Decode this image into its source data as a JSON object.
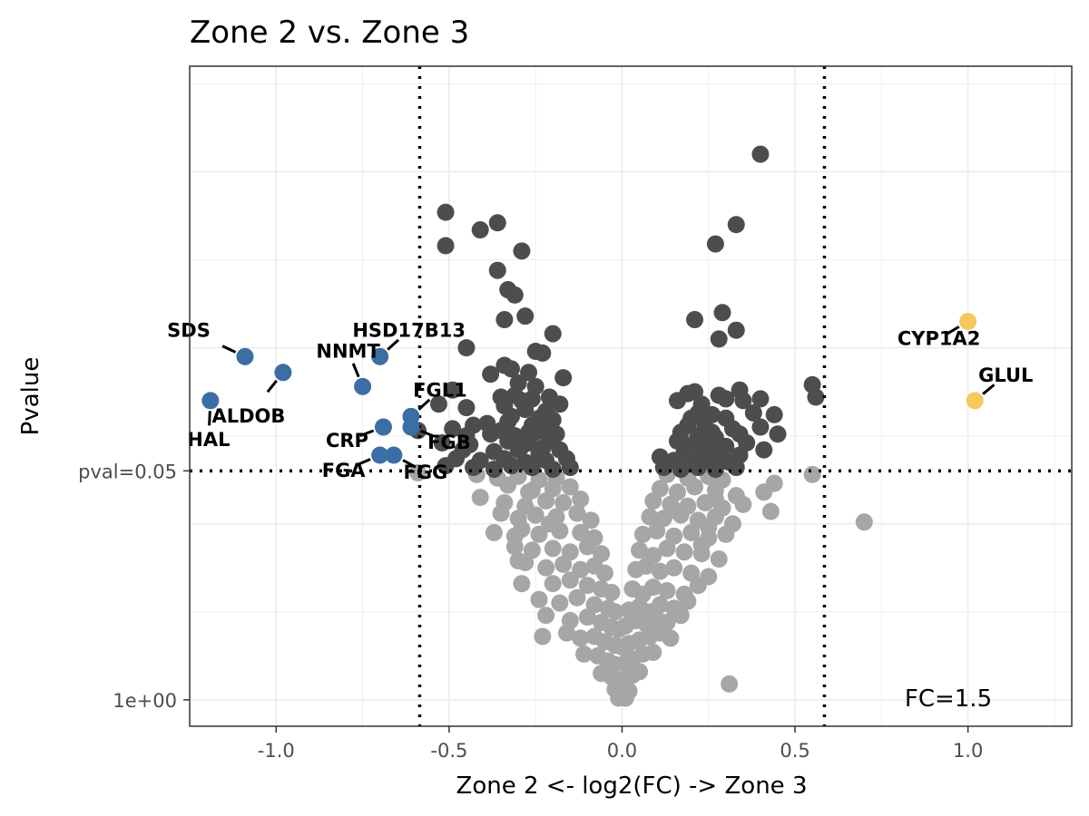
{
  "chart_data": {
    "type": "scatter",
    "title": "Zone 2 vs. Zone 3",
    "xlabel": "Zone 2 <- log2(FC) -> Zone 3",
    "ylabel": "Pvalue",
    "x_ticks": [
      -1.0,
      -0.5,
      0.0,
      0.5,
      1.0
    ],
    "x_tick_labels": [
      "-1.0",
      "-0.5",
      "0.0",
      "0.5",
      "1.0"
    ],
    "xlim": [
      -1.25,
      1.3
    ],
    "y_scale": "-log10",
    "ylim_neglog10": [
      -0.15,
      3.6
    ],
    "y_ticks": [
      {
        "label": "pval=0.05",
        "neglog10": 1.301
      },
      {
        "label": "1e+00",
        "neglog10": 0
      }
    ],
    "threshold_lines": {
      "vertical_log2fc": [
        -0.585,
        0.585
      ],
      "horizontal_neglog10p": 1.301
    },
    "fc_note": "FC=1.5",
    "grid": true,
    "colors": {
      "down": "#3a6ea5",
      "up": "#f5c95a",
      "significant": "#4d4d4d",
      "not_significant": "#a6a6a6",
      "panel_border": "#333333",
      "grid": "#ebebeb"
    },
    "labeled_genes": [
      {
        "gene": "SDS",
        "x": -1.09,
        "y": 1.95,
        "group": "down"
      },
      {
        "gene": "ALDOB",
        "x": -0.98,
        "y": 1.86,
        "group": "down"
      },
      {
        "gene": "HAL",
        "x": -1.19,
        "y": 1.7,
        "group": "down"
      },
      {
        "gene": "HSD17B13",
        "x": -0.7,
        "y": 1.95,
        "group": "down"
      },
      {
        "gene": "NNMT",
        "x": -0.75,
        "y": 1.78,
        "group": "down"
      },
      {
        "gene": "FGL1",
        "x": -0.61,
        "y": 1.61,
        "group": "down"
      },
      {
        "gene": "CRP",
        "x": -0.69,
        "y": 1.55,
        "group": "down"
      },
      {
        "gene": "FGB",
        "x": -0.61,
        "y": 1.55,
        "group": "down"
      },
      {
        "gene": "FGA",
        "x": -0.7,
        "y": 1.39,
        "group": "down"
      },
      {
        "gene": "FGG",
        "x": -0.66,
        "y": 1.39,
        "group": "down"
      },
      {
        "gene": "CYP1A2",
        "x": 1.0,
        "y": 2.15,
        "group": "up"
      },
      {
        "gene": "GLUL",
        "x": 1.02,
        "y": 1.7,
        "group": "up"
      }
    ],
    "significant_points": [
      [
        0.4,
        3.1
      ],
      [
        -0.51,
        2.77
      ],
      [
        -0.36,
        2.71
      ],
      [
        0.33,
        2.7
      ],
      [
        -0.41,
        2.67
      ],
      [
        -0.51,
        2.58
      ],
      [
        0.27,
        2.59
      ],
      [
        -0.29,
        2.55
      ],
      [
        -0.36,
        2.44
      ],
      [
        -0.31,
        2.3
      ],
      [
        -0.33,
        2.33
      ],
      [
        0.29,
        2.2
      ],
      [
        -0.34,
        2.16
      ],
      [
        -0.28,
        2.18
      ],
      [
        0.21,
        2.16
      ],
      [
        -0.2,
        2.08
      ],
      [
        0.33,
        2.1
      ],
      [
        0.28,
        2.05
      ],
      [
        -0.45,
        2.0
      ],
      [
        -0.25,
        1.98
      ],
      [
        -0.23,
        1.97
      ],
      [
        -0.34,
        1.9
      ],
      [
        -0.32,
        1.88
      ],
      [
        -0.27,
        1.86
      ],
      [
        -0.38,
        1.85
      ],
      [
        -0.3,
        1.8
      ],
      [
        -0.17,
        1.83
      ],
      [
        -0.25,
        1.78
      ],
      [
        -0.49,
        1.76
      ],
      [
        0.34,
        1.76
      ],
      [
        0.55,
        1.79
      ],
      [
        0.56,
        1.72
      ],
      [
        -0.31,
        1.73
      ],
      [
        -0.26,
        1.71
      ],
      [
        -0.21,
        1.72
      ],
      [
        0.19,
        1.74
      ],
      [
        0.21,
        1.75
      ],
      [
        0.28,
        1.73
      ],
      [
        0.16,
        1.7
      ],
      [
        0.3,
        1.71
      ],
      [
        0.35,
        1.7
      ],
      [
        0.4,
        1.71
      ],
      [
        -0.53,
        1.68
      ],
      [
        -0.45,
        1.66
      ],
      [
        -0.34,
        1.67
      ],
      [
        -0.28,
        1.65
      ],
      [
        -0.22,
        1.64
      ],
      [
        -0.18,
        1.68
      ],
      [
        0.22,
        1.63
      ],
      [
        0.26,
        1.62
      ],
      [
        0.3,
        1.6
      ],
      [
        0.38,
        1.63
      ],
      [
        0.44,
        1.62
      ],
      [
        -0.49,
        1.54
      ],
      [
        -0.43,
        1.56
      ],
      [
        -0.39,
        1.57
      ],
      [
        -0.33,
        1.58
      ],
      [
        -0.26,
        1.56
      ],
      [
        -0.22,
        1.55
      ],
      [
        0.19,
        1.56
      ],
      [
        0.24,
        1.55
      ],
      [
        0.32,
        1.54
      ],
      [
        0.4,
        1.55
      ],
      [
        -0.59,
        1.53
      ],
      [
        -0.45,
        1.5
      ],
      [
        -0.38,
        1.51
      ],
      [
        -0.31,
        1.5
      ],
      [
        -0.25,
        1.52
      ],
      [
        -0.19,
        1.51
      ],
      [
        0.17,
        1.52
      ],
      [
        0.22,
        1.5
      ],
      [
        0.27,
        1.49
      ],
      [
        0.34,
        1.51
      ],
      [
        0.45,
        1.51
      ],
      [
        -0.52,
        1.46
      ],
      [
        -0.44,
        1.45
      ],
      [
        -0.33,
        1.47
      ],
      [
        -0.27,
        1.46
      ],
      [
        -0.21,
        1.47
      ],
      [
        0.16,
        1.47
      ],
      [
        0.21,
        1.46
      ],
      [
        0.25,
        1.45
      ],
      [
        0.3,
        1.44
      ],
      [
        0.36,
        1.46
      ],
      [
        -0.46,
        1.42
      ],
      [
        -0.37,
        1.41
      ],
      [
        -0.3,
        1.42
      ],
      [
        -0.24,
        1.4
      ],
      [
        -0.18,
        1.42
      ],
      [
        0.18,
        1.41
      ],
      [
        0.23,
        1.4
      ],
      [
        0.28,
        1.41
      ],
      [
        0.34,
        1.39
      ],
      [
        0.41,
        1.42
      ],
      [
        -0.48,
        1.37
      ],
      [
        -0.41,
        1.36
      ],
      [
        -0.34,
        1.37
      ],
      [
        -0.28,
        1.35
      ],
      [
        -0.22,
        1.36
      ],
      [
        -0.16,
        1.37
      ],
      [
        0.11,
        1.38
      ],
      [
        0.15,
        1.36
      ],
      [
        0.2,
        1.35
      ],
      [
        0.25,
        1.36
      ],
      [
        0.31,
        1.35
      ],
      [
        -0.51,
        1.33
      ],
      [
        -0.43,
        1.32
      ],
      [
        -0.37,
        1.31
      ],
      [
        -0.32,
        1.33
      ],
      [
        -0.26,
        1.32
      ],
      [
        -0.2,
        1.31
      ],
      [
        -0.15,
        1.32
      ],
      [
        0.12,
        1.32
      ],
      [
        0.17,
        1.31
      ],
      [
        0.22,
        1.32
      ],
      [
        0.27,
        1.31
      ],
      [
        0.33,
        1.32
      ],
      [
        -0.29,
        1.44
      ],
      [
        -0.23,
        1.43
      ],
      [
        -0.32,
        1.61
      ],
      [
        -0.24,
        1.6
      ],
      [
        -0.2,
        1.59
      ],
      [
        0.19,
        1.44
      ],
      [
        0.24,
        1.42
      ],
      [
        0.2,
        1.6
      ],
      [
        0.26,
        1.52
      ],
      [
        -0.35,
        1.72
      ],
      [
        -0.29,
        1.7
      ],
      [
        0.23,
        1.68
      ],
      [
        -0.27,
        1.52
      ],
      [
        -0.35,
        1.53
      ],
      [
        0.28,
        1.37
      ]
    ],
    "nonsignificant_points": [
      [
        -0.59,
        1.29
      ],
      [
        -0.42,
        1.28
      ],
      [
        -0.36,
        1.26
      ],
      [
        -0.3,
        1.27
      ],
      [
        -0.24,
        1.25
      ],
      [
        -0.19,
        1.26
      ],
      [
        0.13,
        1.28
      ],
      [
        0.19,
        1.26
      ],
      [
        0.25,
        1.27
      ],
      [
        0.29,
        1.25
      ],
      [
        0.55,
        1.28
      ],
      [
        0.44,
        1.23
      ],
      [
        0.41,
        1.18
      ],
      [
        -0.41,
        1.15
      ],
      [
        -0.33,
        1.22
      ],
      [
        -0.26,
        1.19
      ],
      [
        -0.2,
        1.2
      ],
      [
        -0.15,
        1.21
      ],
      [
        0.11,
        1.2
      ],
      [
        0.16,
        1.18
      ],
      [
        0.21,
        1.21
      ],
      [
        0.27,
        1.19
      ],
      [
        0.33,
        1.16
      ],
      [
        0.35,
        1.11
      ],
      [
        0.43,
        1.07
      ],
      [
        0.7,
        1.01
      ],
      [
        -0.34,
        1.12
      ],
      [
        -0.28,
        1.1
      ],
      [
        -0.22,
        1.13
      ],
      [
        -0.17,
        1.12
      ],
      [
        -0.12,
        1.14
      ],
      [
        0.09,
        1.13
      ],
      [
        0.14,
        1.11
      ],
      [
        0.19,
        1.1
      ],
      [
        0.24,
        1.12
      ],
      [
        0.29,
        1.09
      ],
      [
        -0.35,
        1.06
      ],
      [
        -0.3,
        1.03
      ],
      [
        -0.25,
        1.05
      ],
      [
        -0.19,
        1.04
      ],
      [
        -0.13,
        1.06
      ],
      [
        -0.09,
        1.02
      ],
      [
        0.08,
        1.04
      ],
      [
        0.12,
        1.03
      ],
      [
        0.17,
        1.05
      ],
      [
        0.22,
        1.02
      ],
      [
        0.27,
        1.04
      ],
      [
        0.32,
        1.0
      ],
      [
        -0.37,
        0.95
      ],
      [
        -0.29,
        0.97
      ],
      [
        -0.24,
        0.94
      ],
      [
        -0.18,
        0.96
      ],
      [
        -0.12,
        0.95
      ],
      [
        -0.08,
        0.92
      ],
      [
        0.06,
        0.94
      ],
      [
        0.1,
        0.96
      ],
      [
        0.15,
        0.93
      ],
      [
        0.2,
        0.95
      ],
      [
        0.25,
        0.92
      ],
      [
        0.3,
        0.94
      ],
      [
        -0.31,
        0.87
      ],
      [
        -0.26,
        0.85
      ],
      [
        -0.2,
        0.86
      ],
      [
        -0.15,
        0.84
      ],
      [
        -0.1,
        0.87
      ],
      [
        -0.06,
        0.83
      ],
      [
        0.05,
        0.85
      ],
      [
        0.09,
        0.82
      ],
      [
        0.13,
        0.86
      ],
      [
        0.18,
        0.84
      ],
      [
        0.23,
        0.83
      ],
      [
        0.28,
        0.8
      ],
      [
        -0.28,
        0.78
      ],
      [
        -0.22,
        0.75
      ],
      [
        -0.17,
        0.77
      ],
      [
        -0.12,
        0.74
      ],
      [
        -0.08,
        0.76
      ],
      [
        -0.05,
        0.72
      ],
      [
        0.04,
        0.74
      ],
      [
        0.07,
        0.76
      ],
      [
        0.11,
        0.73
      ],
      [
        0.15,
        0.75
      ],
      [
        0.2,
        0.72
      ],
      [
        0.25,
        0.7
      ],
      [
        -0.29,
        0.66
      ],
      [
        -0.2,
        0.66
      ],
      [
        -0.15,
        0.68
      ],
      [
        -0.1,
        0.65
      ],
      [
        -0.06,
        0.63
      ],
      [
        -0.03,
        0.61
      ],
      [
        0.03,
        0.63
      ],
      [
        0.06,
        0.6
      ],
      [
        0.09,
        0.64
      ],
      [
        0.13,
        0.62
      ],
      [
        0.18,
        0.6
      ],
      [
        0.22,
        0.65
      ],
      [
        -0.24,
        0.57
      ],
      [
        -0.18,
        0.55
      ],
      [
        -0.13,
        0.58
      ],
      [
        -0.08,
        0.54
      ],
      [
        -0.04,
        0.52
      ],
      [
        -0.02,
        0.5
      ],
      [
        0.02,
        0.51
      ],
      [
        0.05,
        0.53
      ],
      [
        0.08,
        0.5
      ],
      [
        0.11,
        0.54
      ],
      [
        0.15,
        0.52
      ],
      [
        0.19,
        0.56
      ],
      [
        -0.22,
        0.48
      ],
      [
        -0.15,
        0.45
      ],
      [
        -0.1,
        0.47
      ],
      [
        -0.06,
        0.44
      ],
      [
        -0.03,
        0.41
      ],
      [
        -0.01,
        0.4
      ],
      [
        0.01,
        0.42
      ],
      [
        0.04,
        0.45
      ],
      [
        0.07,
        0.43
      ],
      [
        0.1,
        0.46
      ],
      [
        0.13,
        0.44
      ],
      [
        0.17,
        0.48
      ],
      [
        -0.16,
        0.38
      ],
      [
        -0.12,
        0.35
      ],
      [
        -0.08,
        0.36
      ],
      [
        -0.05,
        0.33
      ],
      [
        -0.02,
        0.31
      ],
      [
        0.0,
        0.3
      ],
      [
        0.02,
        0.32
      ],
      [
        0.05,
        0.34
      ],
      [
        0.08,
        0.36
      ],
      [
        0.11,
        0.38
      ],
      [
        0.14,
        0.35
      ],
      [
        -0.11,
        0.26
      ],
      [
        -0.07,
        0.25
      ],
      [
        -0.04,
        0.22
      ],
      [
        -0.02,
        0.2
      ],
      [
        0.01,
        0.21
      ],
      [
        0.03,
        0.23
      ],
      [
        0.06,
        0.26
      ],
      [
        0.09,
        0.27
      ],
      [
        -0.06,
        0.15
      ],
      [
        -0.03,
        0.13
      ],
      [
        -0.01,
        0.1
      ],
      [
        0.01,
        0.12
      ],
      [
        0.03,
        0.14
      ],
      [
        0.05,
        0.16
      ],
      [
        -0.02,
        0.06
      ],
      [
        0.0,
        0.04
      ],
      [
        0.02,
        0.05
      ],
      [
        -0.01,
        0.01
      ],
      [
        0.01,
        0.01
      ],
      [
        -0.23,
        0.36
      ],
      [
        -0.3,
        0.79
      ],
      [
        0.31,
        0.09
      ],
      [
        0.23,
        0.88
      ],
      [
        -0.21,
        1.0
      ],
      [
        0.16,
        1.07
      ],
      [
        -0.27,
        1.18
      ],
      [
        0.27,
        1.14
      ],
      [
        -0.31,
        0.93
      ],
      [
        0.25,
        0.98
      ]
    ]
  }
}
